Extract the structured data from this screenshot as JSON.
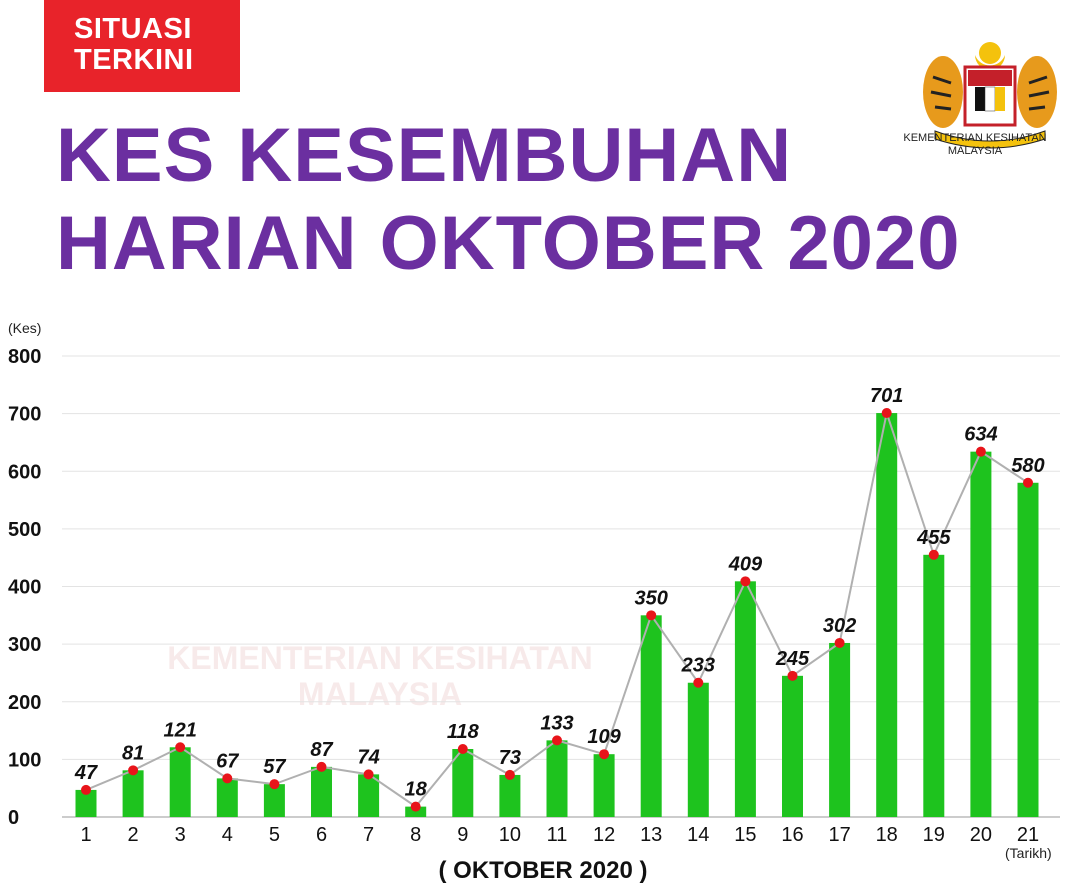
{
  "badge": {
    "line1": "SITUASI",
    "line2": "TERKINI"
  },
  "title": {
    "line1": "KES KESEMBUHAN",
    "line2": "HARIAN OKTOBER 2020"
  },
  "agency": {
    "line1": "KEMENTERIAN KESIHATAN",
    "line2": "MALAYSIA"
  },
  "watermark": {
    "line1": "KEMENTERIAN KESIHATAN",
    "line2": "MALAYSIA"
  },
  "colors": {
    "badge": "#e8232a",
    "title": "#6b2fa0",
    "bar": "#1ec31e",
    "marker": "#e8141a",
    "line": "#b0b0b0"
  },
  "chart_data": {
    "type": "bar",
    "y_unit_label": "(Kes)",
    "x_unit_label": "(Tarikh)",
    "xlabel": "( OKTOBER 2020 )",
    "ylim": [
      0,
      800
    ],
    "yticks": [
      0,
      100,
      200,
      300,
      400,
      500,
      600,
      700,
      800
    ],
    "grid": true,
    "categories": [
      "1",
      "2",
      "3",
      "4",
      "5",
      "6",
      "7",
      "8",
      "9",
      "10",
      "11",
      "12",
      "13",
      "14",
      "15",
      "16",
      "17",
      "18",
      "19",
      "20",
      "21"
    ],
    "values": [
      47,
      81,
      121,
      67,
      57,
      87,
      74,
      18,
      118,
      73,
      133,
      109,
      350,
      233,
      409,
      245,
      302,
      701,
      455,
      634,
      580
    ],
    "overlay": "line-with-markers"
  }
}
